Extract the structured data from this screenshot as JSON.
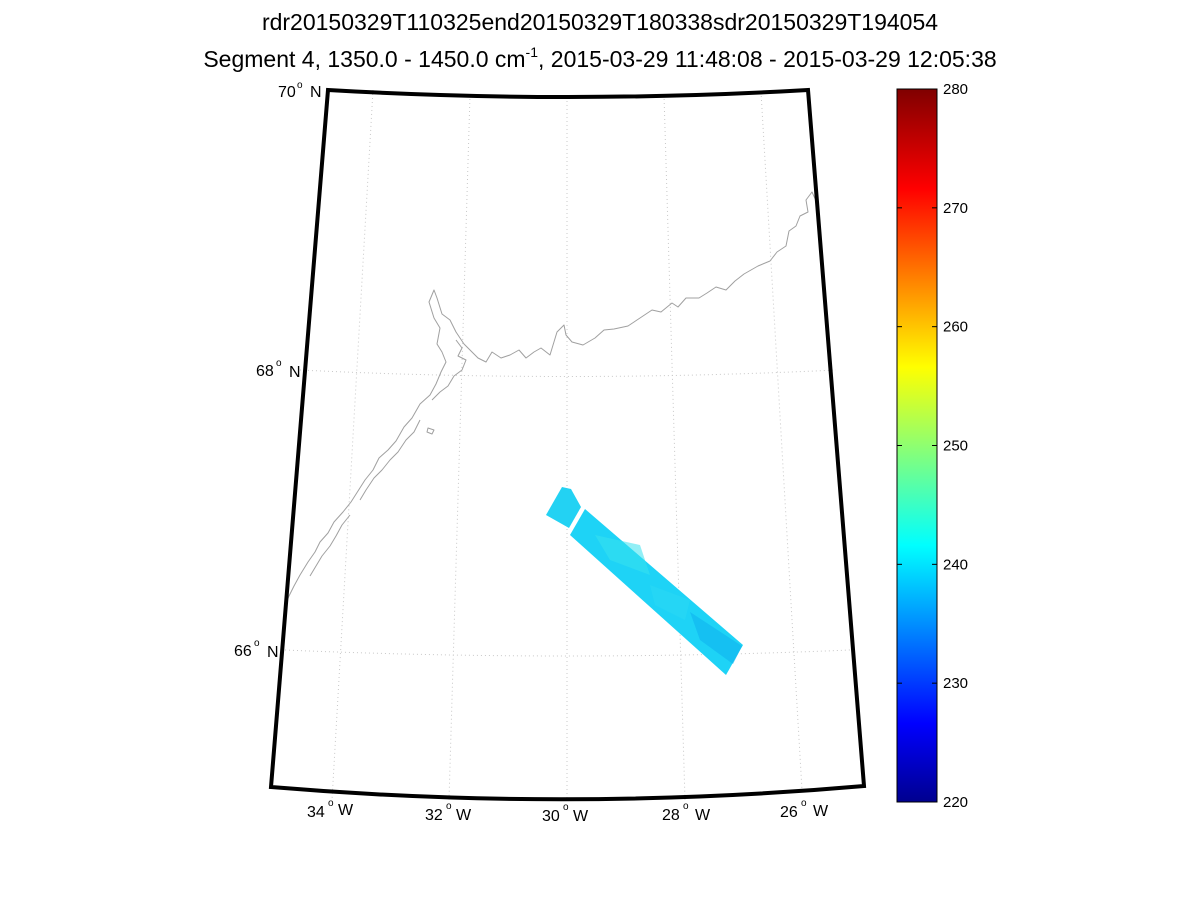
{
  "title": {
    "line1": "rdr20150329T110325end20150329T180338sdr20150329T194054",
    "line2_prefix": "Segment 4, 1350.0 - 1450.0 cm",
    "line2_sup": "-1",
    "line2_suffix": ", 2015-03-29 11:48:08 - 2015-03-29 12:05:38"
  },
  "map": {
    "lat_labels": [
      {
        "value": "70",
        "deg": "o",
        "hemi": "N"
      },
      {
        "value": "68",
        "deg": "o",
        "hemi": "N"
      },
      {
        "value": "66",
        "deg": "o",
        "hemi": "N"
      }
    ],
    "lon_labels": [
      {
        "value": "34",
        "deg": "o",
        "hemi": "W"
      },
      {
        "value": "32",
        "deg": "o",
        "hemi": "W"
      },
      {
        "value": "30",
        "deg": "o",
        "hemi": "W"
      },
      {
        "value": "28",
        "deg": "o",
        "hemi": "W"
      },
      {
        "value": "26",
        "deg": "o",
        "hemi": "W"
      }
    ],
    "swath_value_approx": 241,
    "frame_color": "#000000",
    "grid_color": "#c8c8c8",
    "coast_color": "#a0a0a0"
  },
  "colorbar": {
    "min": 220,
    "max": 280,
    "ticks": [
      "220",
      "230",
      "240",
      "250",
      "260",
      "270",
      "280"
    ],
    "colormap": "jet"
  }
}
